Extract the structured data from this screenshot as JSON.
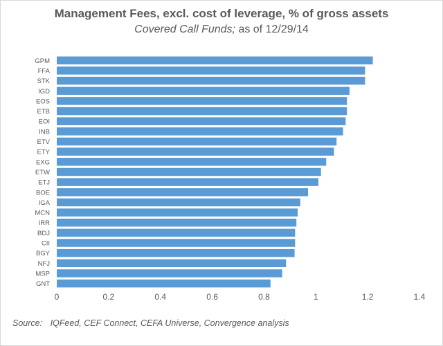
{
  "chart_data": {
    "type": "bar",
    "orientation": "horizontal",
    "title": "Management Fees, excl. cost of leverage, % of gross assets",
    "subtitle_italic": "Covered Call Funds;",
    "subtitle_rest": "as of 12/29/14",
    "xlim": [
      0,
      1.4
    ],
    "xticks": [
      "0",
      "0.2",
      "0.4",
      "0.6",
      "0.8",
      "1",
      "1.2",
      "1.4"
    ],
    "xtick_values": [
      0,
      0.2,
      0.4,
      0.6,
      0.8,
      1,
      1.2,
      1.4
    ],
    "categories": [
      "GPM",
      "FFA",
      "STK",
      "IGD",
      "EOS",
      "ETB",
      "EOI",
      "INB",
      "ETV",
      "ETY",
      "EXG",
      "ETW",
      "ETJ",
      "BOE",
      "IGA",
      "MCN",
      "IRR",
      "BDJ",
      "CII",
      "BGY",
      "NFJ",
      "MSP",
      "GNT"
    ],
    "values": [
      1.22,
      1.19,
      1.19,
      1.13,
      1.12,
      1.12,
      1.115,
      1.105,
      1.08,
      1.07,
      1.04,
      1.02,
      1.01,
      0.97,
      0.94,
      0.93,
      0.925,
      0.92,
      0.92,
      0.918,
      0.885,
      0.87,
      0.825
    ],
    "bar_color": "#5b9bd5",
    "grid": false,
    "legend": "none"
  },
  "source": {
    "label": "Source:",
    "text": "IQFeed, CEF Connect, CEFA Universe, Convergence analysis"
  }
}
